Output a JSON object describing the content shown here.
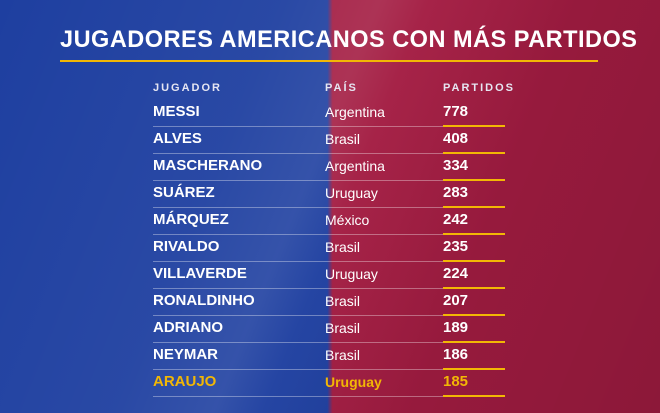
{
  "title": "JUGADORES AMERICANOS CON MÁS PARTIDOS",
  "colors": {
    "blue": "#1e3fa0",
    "red": "#a31c42",
    "gold": "#f2b705",
    "text": "#ffffff"
  },
  "table": {
    "headers": {
      "player": "JUGADOR",
      "country": "PAÍS",
      "matches": "PARTIDOS"
    },
    "rows": [
      {
        "player": "MESSI",
        "country": "Argentina",
        "matches": "778",
        "highlight": false
      },
      {
        "player": "ALVES",
        "country": "Brasil",
        "matches": "408",
        "highlight": false
      },
      {
        "player": "MASCHERANO",
        "country": "Argentina",
        "matches": "334",
        "highlight": false
      },
      {
        "player": "SUÁREZ",
        "country": "Uruguay",
        "matches": "283",
        "highlight": false
      },
      {
        "player": "MÁRQUEZ",
        "country": "México",
        "matches": "242",
        "highlight": false
      },
      {
        "player": "RIVALDO",
        "country": "Brasil",
        "matches": "235",
        "highlight": false
      },
      {
        "player": "VILLAVERDE",
        "country": "Uruguay",
        "matches": "224",
        "highlight": false
      },
      {
        "player": "RONALDINHO",
        "country": "Brasil",
        "matches": "207",
        "highlight": false
      },
      {
        "player": "ADRIANO",
        "country": "Brasil",
        "matches": "189",
        "highlight": false
      },
      {
        "player": "NEYMAR",
        "country": "Brasil",
        "matches": "186",
        "highlight": false
      },
      {
        "player": "ARAUJO",
        "country": "Uruguay",
        "matches": "185",
        "highlight": true
      }
    ]
  },
  "chart_data": {
    "type": "table",
    "title": "JUGADORES AMERICANOS CON MÁS PARTIDOS",
    "columns": [
      "JUGADOR",
      "PAÍS",
      "PARTIDOS"
    ],
    "rows": [
      [
        "MESSI",
        "Argentina",
        778
      ],
      [
        "ALVES",
        "Brasil",
        408
      ],
      [
        "MASCHERANO",
        "Argentina",
        334
      ],
      [
        "SUÁREZ",
        "Uruguay",
        283
      ],
      [
        "MÁRQUEZ",
        "México",
        242
      ],
      [
        "RIVALDO",
        "Brasil",
        235
      ],
      [
        "VILLAVERDE",
        "Uruguay",
        224
      ],
      [
        "RONALDINHO",
        "Brasil",
        207
      ],
      [
        "ADRIANO",
        "Brasil",
        189
      ],
      [
        "NEYMAR",
        "Brasil",
        186
      ],
      [
        "ARAUJO",
        "Uruguay",
        185
      ]
    ],
    "highlighted_player": "ARAUJO",
    "layout": {
      "background_left_color": "#1e3fa0",
      "background_right_color": "#a31c42",
      "highlight_color": "#f2b705"
    }
  }
}
